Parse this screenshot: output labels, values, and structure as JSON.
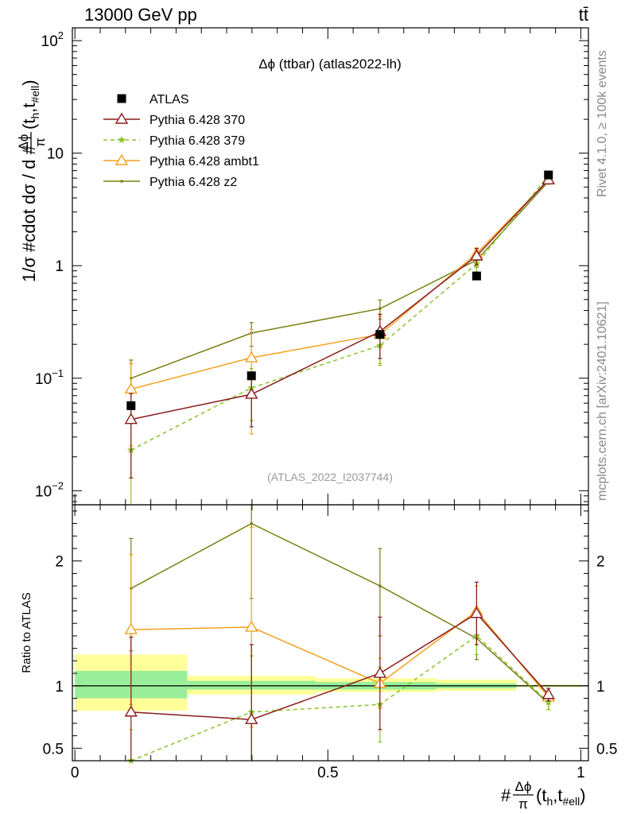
{
  "header": {
    "left_title": "13000 GeV pp",
    "right_title": "tt̄"
  },
  "side_labels": {
    "rivet": "Rivet 4.1.0, ≥ 100k events",
    "mcplots": "mcplots.cern.ch [arXiv:2401.10621]"
  },
  "chart_data": [
    {
      "panel": "main",
      "type": "line",
      "title": "Δϕ (ttbar) (atlas2022-lh)",
      "watermark": "(ATLAS_2022_I2037744)",
      "ylabel": "1/σ #cdot dσ / d #Δϕπ(th,t#ell)",
      "ylabel_parts": {
        "pre": "1/σ #cdot dσ / d #",
        "frac_num": "Δϕ",
        "frac_den": "π",
        "mid": "(t",
        "sub1": "h",
        "comma": ",t",
        "sub2": "#ell",
        "post": ")"
      },
      "yscale": "log",
      "ylim": [
        0.0075,
        130
      ],
      "xlim": [
        -0.005,
        1.015
      ],
      "y_ticks": [
        {
          "value": 0.01,
          "base": "10",
          "exp": "−2"
        },
        {
          "value": 0.1,
          "base": "10",
          "exp": "−1"
        },
        {
          "value": 1,
          "label": "1"
        },
        {
          "value": 10,
          "label": "10"
        },
        {
          "value": 100,
          "base": "10",
          "exp": "2"
        }
      ],
      "legend_position": "top-left",
      "series": [
        {
          "name": "ATLAS",
          "color": "#000000",
          "marker": "square",
          "line": "none",
          "x": [
            0.111,
            0.349,
            0.603,
            0.794,
            0.936
          ],
          "y": [
            0.057,
            0.105,
            0.245,
            0.81,
            6.4
          ],
          "yerr": [
            0,
            0,
            0,
            0,
            0
          ]
        },
        {
          "name": "Pythia 6.428 370",
          "color": "#8b1a1a",
          "marker": "triangle-open",
          "line": "solid",
          "x": [
            0.111,
            0.349,
            0.603,
            0.794,
            0.936
          ],
          "y": [
            0.043,
            0.072,
            0.26,
            1.22,
            5.8
          ],
          "yerr": [
            0.03,
            0.035,
            0.11,
            0.2,
            0.3
          ]
        },
        {
          "name": "Pythia 6.428 379",
          "color": "#8ac22b",
          "marker": "star",
          "line": "dashed",
          "x": [
            0.111,
            0.349,
            0.603,
            0.794,
            0.936
          ],
          "y": [
            0.023,
            0.082,
            0.195,
            1.04,
            6.3
          ],
          "yerr": [
            0.02,
            0.04,
            0.065,
            0.16,
            0.3
          ]
        },
        {
          "name": "Pythia 6.428 ambt1",
          "color": "#f5a01e",
          "marker": "triangle-open",
          "line": "solid",
          "x": [
            0.111,
            0.349,
            0.603,
            0.794,
            0.936
          ],
          "y": [
            0.08,
            0.152,
            0.245,
            1.28,
            5.8
          ],
          "yerr": [
            0.055,
            0.12,
            0.11,
            0.16,
            0.3
          ]
        },
        {
          "name": "Pythia 6.428 z2",
          "color": "#7a7f12",
          "marker": "dot",
          "line": "solid",
          "x": [
            0.111,
            0.349,
            0.603,
            0.794,
            0.936
          ],
          "y": [
            0.1,
            0.252,
            0.415,
            1.12,
            5.6
          ],
          "yerr": [
            0.045,
            0.06,
            0.08,
            0.15,
            0.3
          ]
        }
      ]
    },
    {
      "panel": "ratio",
      "type": "line",
      "ylabel": "Ratio to ATLAS",
      "xlabel": "#Δϕπ(th,t#ell)",
      "xlabel_parts": {
        "pre": "#",
        "frac_num": "Δϕ",
        "frac_den": "π",
        "mid": "(t",
        "sub1": "h",
        "comma": ",t",
        "sub2": "#ell",
        "post": ")"
      },
      "ylim": [
        0.4,
        2.45
      ],
      "xlim": [
        -0.005,
        1.015
      ],
      "y_ticks": [
        0.5,
        1,
        2
      ],
      "y_tick_labels": [
        "0.5",
        "1",
        "2"
      ],
      "x_ticks": [
        0,
        0.5,
        1
      ],
      "x_tick_labels": [
        "0",
        "0.5",
        "1"
      ],
      "bands": [
        {
          "x0": 0.0,
          "x1": 0.222,
          "yellow": [
            0.8,
            1.25
          ],
          "green": [
            0.9,
            1.12
          ]
        },
        {
          "x0": 0.222,
          "x1": 0.476,
          "yellow": [
            0.93,
            1.08
          ],
          "green": [
            0.97,
            1.04
          ]
        },
        {
          "x0": 0.476,
          "x1": 0.714,
          "yellow": [
            0.95,
            1.06
          ],
          "green": [
            0.97,
            1.03
          ]
        },
        {
          "x0": 0.714,
          "x1": 0.873,
          "yellow": [
            0.96,
            1.05
          ],
          "green": [
            0.98,
            1.02
          ]
        },
        {
          "x0": 0.873,
          "x1": 1.0,
          "yellow": [
            0.99,
            1.01
          ],
          "green": [
            0.995,
            1.005
          ]
        }
      ],
      "series": [
        {
          "name": "Pythia 6.428 370",
          "color": "#8b1a1a",
          "marker": "triangle-open",
          "line": "solid",
          "x": [
            0.111,
            0.349,
            0.603,
            0.794,
            0.936
          ],
          "y": [
            0.79,
            0.73,
            1.1,
            1.58,
            0.93
          ],
          "yerr_lo": [
            0.6,
            0.6,
            0.45,
            0.25,
            0.05
          ],
          "yerr_hi": [
            0.6,
            0.6,
            0.45,
            0.25,
            0.05
          ]
        },
        {
          "name": "Pythia 6.428 379",
          "color": "#8ac22b",
          "marker": "star",
          "line": "dashed",
          "x": [
            0.111,
            0.349,
            0.603,
            0.794,
            0.936
          ],
          "y": [
            0.35,
            0.79,
            0.85,
            1.4,
            0.87
          ],
          "yerr_lo": [
            0.3,
            0.45,
            0.3,
            0.15,
            0.06
          ],
          "yerr_hi": [
            0.3,
            0.45,
            0.3,
            0.15,
            0.06
          ]
        },
        {
          "name": "Pythia 6.428 ambt1",
          "color": "#f5a01e",
          "marker": "triangle-open",
          "line": "solid",
          "x": [
            0.111,
            0.349,
            0.603,
            0.794,
            0.936
          ],
          "y": [
            1.45,
            1.47,
            1.02,
            1.6,
            0.91
          ],
          "yerr_lo": [
            0.6,
            0.8,
            0.2,
            0.2,
            0.05
          ],
          "yerr_hi": [
            0.6,
            0.8,
            0.2,
            0.2,
            0.05
          ]
        },
        {
          "name": "Pythia 6.428 z2",
          "color": "#7a7f12",
          "marker": "dot",
          "line": "solid",
          "x": [
            0.111,
            0.349,
            0.603,
            0.794,
            0.936
          ],
          "y": [
            1.78,
            2.3,
            1.8,
            1.38,
            0.86
          ],
          "yerr_lo": [
            0.5,
            0.6,
            0.4,
            0.17,
            0.05
          ],
          "yerr_hi": [
            0.4,
            0.5,
            0.3,
            0.17,
            0.05
          ]
        }
      ]
    }
  ]
}
